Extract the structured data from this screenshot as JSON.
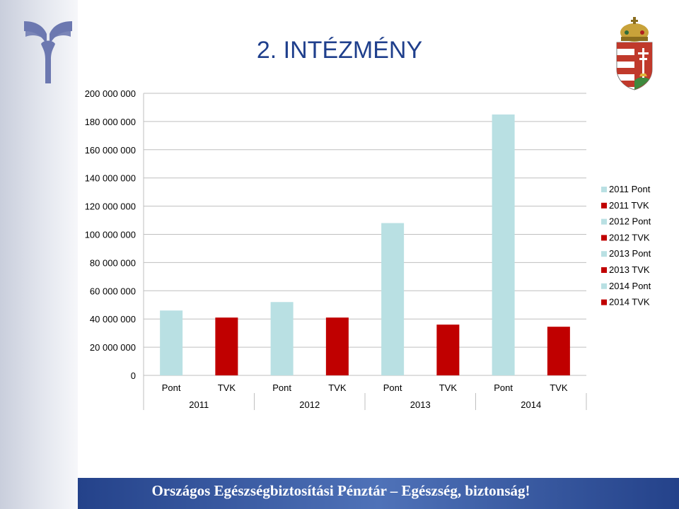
{
  "slide": {
    "title": "2. INTÉZMÉNY",
    "footer": "Országos Egészségbiztosítási Pénztár – Egészség, biztonság!"
  },
  "colors": {
    "pont": "#b9e0e3",
    "tvk": "#c00000",
    "footer": "#2f4f97",
    "title": "#1f3f8c"
  },
  "icons": {
    "left_logo": "oep-logo-icon",
    "right_logo": "hungarian-coat-of-arms-icon"
  },
  "chart_data": {
    "type": "bar",
    "title": "",
    "xlabel": "",
    "ylabel": "",
    "ylim": [
      0,
      200000000
    ],
    "ytick_labels": [
      "0",
      "20 000 000",
      "40 000 000",
      "60 000 000",
      "80 000 000",
      "100 000 000",
      "120 000 000",
      "140 000 000",
      "160 000 000",
      "180 000 000",
      "200 000 000"
    ],
    "groups": [
      "2011",
      "2012",
      "2013",
      "2014"
    ],
    "categories": [
      "Pont",
      "TVK",
      "Pont",
      "TVK",
      "Pont",
      "TVK",
      "Pont",
      "TVK"
    ],
    "bars": [
      {
        "group": "2011",
        "category": "Pont",
        "series": "2011 Pont",
        "value": 46000000,
        "color": "#b9e0e3"
      },
      {
        "group": "2011",
        "category": "TVK",
        "series": "2011 TVK",
        "value": 41000000,
        "color": "#c00000"
      },
      {
        "group": "2012",
        "category": "Pont",
        "series": "2012 Pont",
        "value": 52000000,
        "color": "#b9e0e3"
      },
      {
        "group": "2012",
        "category": "TVK",
        "series": "2012 TVK",
        "value": 41000000,
        "color": "#c00000"
      },
      {
        "group": "2013",
        "category": "Pont",
        "series": "2013 Pont",
        "value": 108000000,
        "color": "#b9e0e3"
      },
      {
        "group": "2013",
        "category": "TVK",
        "series": "2013 TVK",
        "value": 36000000,
        "color": "#c00000"
      },
      {
        "group": "2014",
        "category": "Pont",
        "series": "2014 Pont",
        "value": 185000000,
        "color": "#b9e0e3"
      },
      {
        "group": "2014",
        "category": "TVK",
        "series": "2014 TVK",
        "value": 34500000,
        "color": "#c00000"
      }
    ],
    "legend": {
      "position": "right",
      "entries": [
        {
          "name": "2011 Pont",
          "color": "#b9e0e3"
        },
        {
          "name": "2011 TVK",
          "color": "#c00000"
        },
        {
          "name": "2012 Pont",
          "color": "#b9e0e3"
        },
        {
          "name": "2012 TVK",
          "color": "#c00000"
        },
        {
          "name": "2013 Pont",
          "color": "#b9e0e3"
        },
        {
          "name": "2013 TVK",
          "color": "#c00000"
        },
        {
          "name": "2014 Pont",
          "color": "#b9e0e3"
        },
        {
          "name": "2014 TVK",
          "color": "#c00000"
        }
      ]
    },
    "grid": true
  }
}
